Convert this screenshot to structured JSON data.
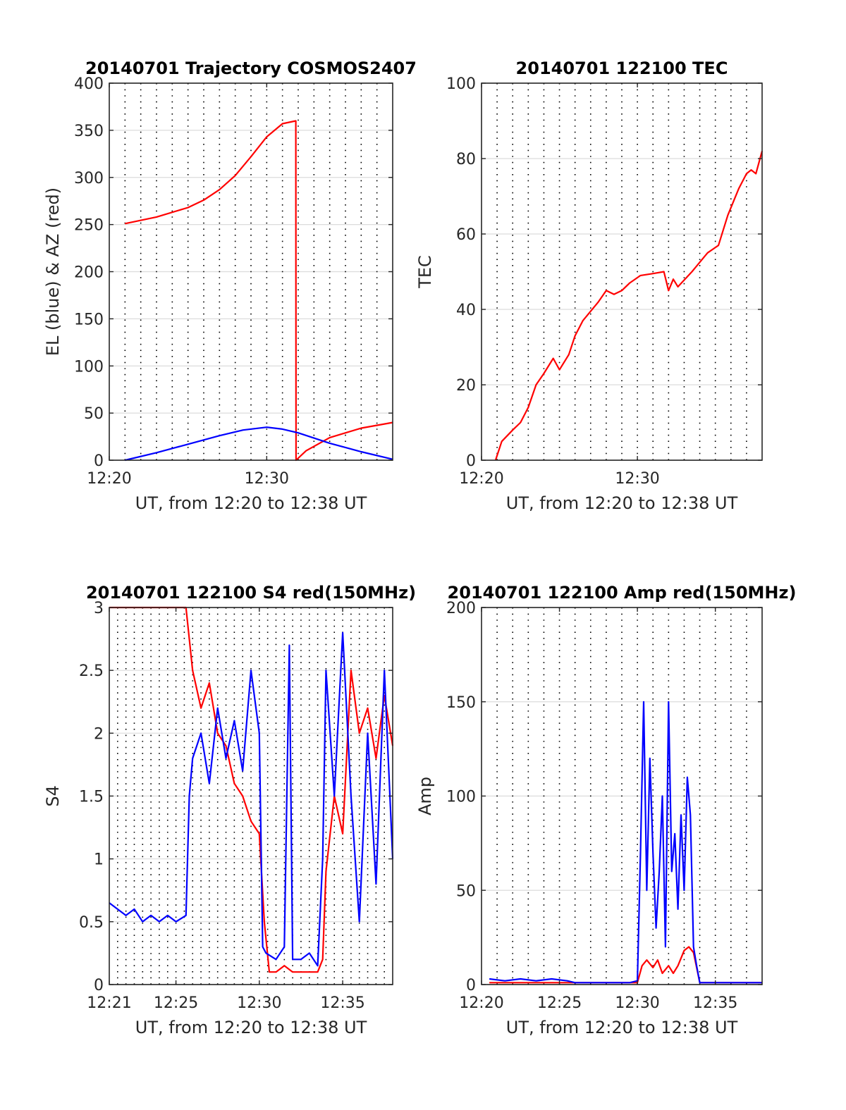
{
  "colors": {
    "red": "#ff0000",
    "blue": "#0000ff",
    "axis": "#262626",
    "grid": "#dcdcdc"
  },
  "chart_data": [
    {
      "type": "line",
      "title": "20140701 Trajectory COSMOS2407",
      "xlabel": "UT, from 12:20 to 12:38 UT",
      "ylabel": "EL (blue) & AZ (red)",
      "xlim_minutes": [
        0,
        18
      ],
      "ylim": [
        0,
        400
      ],
      "xticks": [
        {
          "v": 0,
          "label": "12:20"
        },
        {
          "v": 10,
          "label": "12:30"
        }
      ],
      "yticks": [
        0,
        50,
        100,
        150,
        200,
        250,
        300,
        350,
        400
      ],
      "grid": "y solid, x dotted every minute",
      "series": [
        {
          "color": "red",
          "x_minutes": [
            1.0,
            3,
            5,
            6,
            7,
            8,
            9,
            10,
            11,
            11.85,
            11.86,
            12.5,
            14,
            16,
            18
          ],
          "y": [
            251,
            258,
            268,
            276,
            287,
            302,
            322,
            343,
            357,
            360,
            0,
            10,
            24,
            34,
            40
          ]
        },
        {
          "color": "blue",
          "x_minutes": [
            1.0,
            3,
            5,
            7,
            8.5,
            10,
            11,
            12,
            14,
            16,
            18
          ],
          "y": [
            0,
            8,
            17,
            26,
            32,
            35,
            33,
            29,
            18,
            9,
            1
          ]
        }
      ]
    },
    {
      "type": "line",
      "title": "20140701 122100 TEC",
      "xlabel": "UT, from 12:20 to 12:38 UT",
      "ylabel": "TEC",
      "xlim_minutes": [
        0,
        18
      ],
      "ylim": [
        0,
        100
      ],
      "xticks": [
        {
          "v": 0,
          "label": "12:20"
        },
        {
          "v": 10,
          "label": "12:30"
        }
      ],
      "yticks": [
        0,
        20,
        40,
        60,
        80,
        100
      ],
      "grid": "y solid, x dotted every minute",
      "series": [
        {
          "color": "red",
          "x_minutes": [
            0.9,
            1.3,
            2.0,
            2.5,
            3.0,
            3.5,
            4.0,
            4.6,
            5.0,
            5.6,
            6.0,
            6.5,
            7.5,
            8.0,
            8.5,
            9.0,
            9.5,
            10.2,
            11.0,
            11.7,
            12.0,
            12.3,
            12.6,
            13.5,
            14.5,
            15.2,
            15.8,
            16.5,
            17.0,
            17.3,
            17.6,
            18.0
          ],
          "y": [
            0,
            5,
            8,
            10,
            14,
            20,
            23,
            27,
            24,
            28,
            33,
            37,
            42,
            45,
            44,
            45,
            47,
            49,
            49.5,
            50,
            45,
            48,
            46,
            50,
            55,
            57,
            65,
            72,
            76,
            77,
            76,
            82
          ]
        }
      ]
    },
    {
      "type": "line",
      "title": "20140701 122100 S4 red(150MHz)",
      "xlabel": "UT, from 12:20 to 12:38 UT",
      "ylabel": "S4",
      "xlim_minutes": [
        1,
        18
      ],
      "ylim": [
        0,
        3
      ],
      "xticks": [
        {
          "v": 1,
          "label": "12:21"
        },
        {
          "v": 5,
          "label": "12:25"
        },
        {
          "v": 10,
          "label": "12:30"
        },
        {
          "v": 15,
          "label": "12:35"
        }
      ],
      "yticks": [
        0,
        0.5,
        1,
        1.5,
        2,
        2.5,
        3
      ],
      "ytick_labels": [
        "0",
        "0.5",
        "1",
        "1.5",
        "2",
        "2.5",
        "3"
      ],
      "grid": "y solid, x dotted every 0.5 minute",
      "series": [
        {
          "color": "red",
          "x_minutes": [
            1.0,
            2.0,
            3.0,
            4.0,
            5.0,
            5.6,
            6.0,
            6.5,
            7.0,
            7.5,
            8.0,
            8.5,
            9.0,
            9.5,
            10.0,
            10.3,
            10.6,
            11.0,
            11.5,
            12.0,
            12.5,
            13.0,
            13.5,
            13.8,
            14.0,
            14.5,
            15.0,
            15.5,
            16.0,
            16.5,
            17.0,
            17.5,
            18.0
          ],
          "y": [
            3.0,
            3.0,
            3.0,
            3.0,
            3.0,
            3.0,
            2.5,
            2.2,
            2.4,
            2.0,
            1.9,
            1.6,
            1.5,
            1.3,
            1.2,
            0.5,
            0.1,
            0.1,
            0.15,
            0.1,
            0.1,
            0.1,
            0.1,
            0.2,
            0.9,
            1.5,
            1.2,
            2.5,
            2.0,
            2.2,
            1.8,
            2.3,
            1.9
          ]
        },
        {
          "color": "blue",
          "x_minutes": [
            1.0,
            1.5,
            2.0,
            2.5,
            3.0,
            3.5,
            4.0,
            4.5,
            5.0,
            5.6,
            5.8,
            6.0,
            6.5,
            7.0,
            7.5,
            8.0,
            8.5,
            9.0,
            9.5,
            10.0,
            10.2,
            10.4,
            11.0,
            11.5,
            11.8,
            12.0,
            12.5,
            13.0,
            13.5,
            13.8,
            14.0,
            14.5,
            15.0,
            15.5,
            16.0,
            16.5,
            17.0,
            17.5,
            18.0
          ],
          "y": [
            0.65,
            0.6,
            0.55,
            0.6,
            0.5,
            0.55,
            0.5,
            0.55,
            0.5,
            0.55,
            1.5,
            1.8,
            2.0,
            1.6,
            2.2,
            1.8,
            2.1,
            1.7,
            2.5,
            2.0,
            0.3,
            0.25,
            0.2,
            0.3,
            2.7,
            0.2,
            0.2,
            0.25,
            0.15,
            1.0,
            2.5,
            1.5,
            2.8,
            1.5,
            0.5,
            2.0,
            0.8,
            2.5,
            1.0
          ]
        }
      ]
    },
    {
      "type": "line",
      "title": "20140701 122100 Amp red(150MHz)",
      "xlabel": "UT, from 12:20 to 12:38 UT",
      "ylabel": "Amp",
      "xlim_minutes": [
        0,
        18
      ],
      "ylim": [
        0,
        200
      ],
      "xticks": [
        {
          "v": 0,
          "label": "12:20"
        },
        {
          "v": 5,
          "label": "12:25"
        },
        {
          "v": 10,
          "label": "12:30"
        },
        {
          "v": 15,
          "label": "12:35"
        }
      ],
      "yticks": [
        0,
        50,
        100,
        150,
        200
      ],
      "grid": "y solid, x dotted every minute",
      "series": [
        {
          "color": "red",
          "x_minutes": [
            0.5,
            5.0,
            6.0,
            9.0,
            10.0,
            10.3,
            10.6,
            11.0,
            11.3,
            11.6,
            12.0,
            12.3,
            12.6,
            13.0,
            13.3,
            13.6,
            14.0,
            18.0
          ],
          "y": [
            1,
            1,
            1,
            1,
            1,
            10,
            13,
            9,
            13,
            6,
            10,
            6,
            10,
            18,
            20,
            17,
            1,
            1
          ]
        },
        {
          "color": "blue",
          "x_minutes": [
            0.5,
            1.5,
            2.5,
            3.5,
            4.5,
            5.5,
            6.0,
            7.0,
            8.0,
            9.0,
            9.5,
            10.0,
            10.2,
            10.4,
            10.6,
            10.8,
            11.0,
            11.2,
            11.4,
            11.6,
            11.8,
            12.0,
            12.2,
            12.4,
            12.6,
            12.8,
            13.0,
            13.2,
            13.4,
            13.6,
            13.8,
            14.0,
            15.0,
            16.0,
            17.0,
            18.0
          ],
          "y": [
            3,
            2,
            3,
            2,
            3,
            2,
            1,
            1,
            1,
            1,
            1,
            2,
            70,
            150,
            50,
            120,
            70,
            30,
            60,
            100,
            20,
            150,
            60,
            80,
            40,
            90,
            50,
            110,
            90,
            20,
            10,
            1,
            1,
            1,
            1,
            1
          ]
        }
      ]
    }
  ]
}
